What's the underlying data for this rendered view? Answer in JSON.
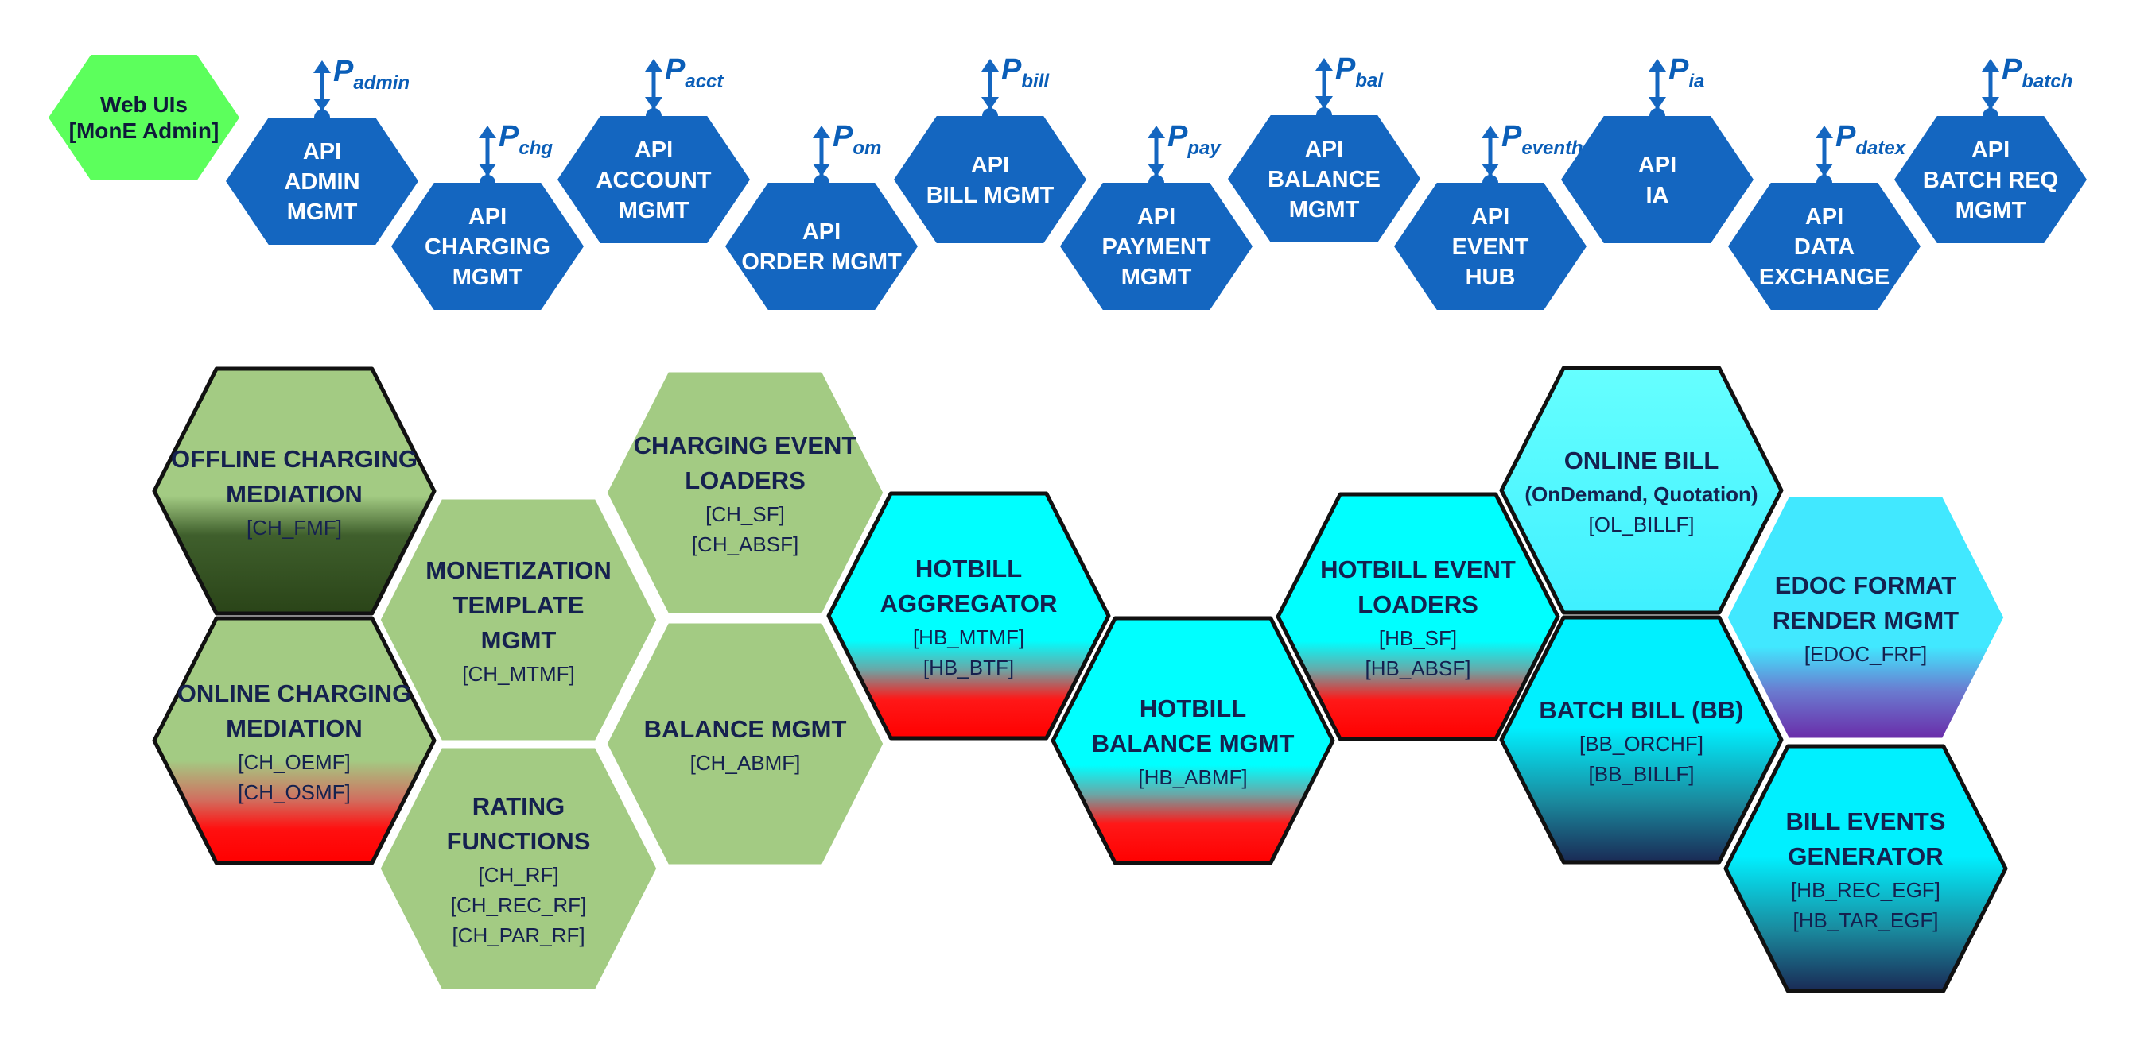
{
  "web_ui": {
    "lines": [
      "Web UIs",
      "[MonE Admin]"
    ],
    "color": "#5cff5c"
  },
  "api_color": "#1466c0",
  "apis": [
    {
      "id": "admin",
      "lines": [
        "API",
        "ADMIN",
        "MGMT"
      ],
      "port_main": "P",
      "port_sub": "admin"
    },
    {
      "id": "charging",
      "lines": [
        "API",
        "CHARGING",
        "MGMT"
      ],
      "port_main": "P",
      "port_sub": "chg"
    },
    {
      "id": "account",
      "lines": [
        "API",
        "ACCOUNT",
        "MGMT"
      ],
      "port_main": "P",
      "port_sub": "acct"
    },
    {
      "id": "order",
      "lines": [
        "API",
        "ORDER MGMT"
      ],
      "port_main": "P",
      "port_sub": "om"
    },
    {
      "id": "bill",
      "lines": [
        "API",
        "BILL MGMT"
      ],
      "port_main": "P",
      "port_sub": "bill"
    },
    {
      "id": "payment",
      "lines": [
        "API",
        "PAYMENT",
        "MGMT"
      ],
      "port_main": "P",
      "port_sub": "pay"
    },
    {
      "id": "balance",
      "lines": [
        "API",
        "BALANCE",
        "MGMT"
      ],
      "port_main": "P",
      "port_sub": "bal"
    },
    {
      "id": "eventhub",
      "lines": [
        "API",
        "EVENT",
        "HUB"
      ],
      "port_main": "P",
      "port_sub": "eventhub"
    },
    {
      "id": "ia",
      "lines": [
        "API",
        "IA"
      ],
      "port_main": "P",
      "port_sub": "ia"
    },
    {
      "id": "datex",
      "lines": [
        "API",
        "DATA",
        "EXCHANGE"
      ],
      "port_main": "P",
      "port_sub": "datex"
    },
    {
      "id": "batch",
      "lines": [
        "API",
        "BATCH REQ",
        "MGMT"
      ],
      "port_main": "P",
      "port_sub": "batch"
    }
  ],
  "services": [
    {
      "id": "offline-charging-mediation",
      "title": [
        "OFFLINE CHARGING",
        "MEDIATION"
      ],
      "codes": [
        "[CH_FMF]"
      ],
      "fill": "dark-green"
    },
    {
      "id": "online-charging-mediation",
      "title": [
        "ONLINE CHARGING",
        "MEDIATION"
      ],
      "codes": [
        "[CH_OEMF]",
        "[CH_OSMF]"
      ],
      "fill": "green-red"
    },
    {
      "id": "monetization-template-mgmt",
      "title": [
        "MONETIZATION",
        "TEMPLATE",
        "MGMT"
      ],
      "codes": [
        "[CH_MTMF]"
      ],
      "fill": "green"
    },
    {
      "id": "rating-functions",
      "title": [
        "RATING",
        "FUNCTIONS"
      ],
      "codes": [
        "[CH_RF]",
        "[CH_REC_RF]",
        "[CH_PAR_RF]"
      ],
      "fill": "green"
    },
    {
      "id": "charging-event-loaders",
      "title": [
        "CHARGING EVENT",
        "LOADERS"
      ],
      "codes": [
        "[CH_SF]",
        "[CH_ABSF]"
      ],
      "fill": "green"
    },
    {
      "id": "balance-mgmt",
      "title": [
        "BALANCE MGMT"
      ],
      "codes": [
        "[CH_ABMF]"
      ],
      "fill": "green"
    },
    {
      "id": "hotbill-aggregator",
      "title": [
        "HOTBILL",
        "AGGREGATOR"
      ],
      "codes": [
        "[HB_MTMF]",
        "[HB_BTF]"
      ],
      "fill": "cyan-red"
    },
    {
      "id": "hotbill-balance-mgmt",
      "title": [
        "HOTBILL",
        "BALANCE MGMT"
      ],
      "codes": [
        "[HB_ABMF]"
      ],
      "fill": "cyan-red"
    },
    {
      "id": "hotbill-event-loaders",
      "title": [
        "HOTBILL EVENT",
        "LOADERS"
      ],
      "codes": [
        "[HB_SF]",
        "[HB_ABSF]"
      ],
      "fill": "cyan-red"
    },
    {
      "id": "online-bill",
      "title": [
        "ONLINE BILL"
      ],
      "subtitle": "(OnDemand, Quotation)",
      "codes": [
        "[OL_BILLF]"
      ],
      "fill": "light-cyan"
    },
    {
      "id": "batch-bill",
      "title": [
        "BATCH BILL (BB)"
      ],
      "codes": [
        "[BB_ORCHF]",
        "[BB_BILLF]"
      ],
      "fill": "cyan-navy"
    },
    {
      "id": "edoc-format-render-mgmt",
      "title": [
        "EDOC FORMAT",
        "RENDER MGMT"
      ],
      "codes": [
        "[EDOC_FRF]"
      ],
      "fill": "cyan-purple"
    },
    {
      "id": "bill-events-generator",
      "title": [
        "BILL EVENTS",
        "GENERATOR"
      ],
      "codes": [
        "[HB_REC_EGF]",
        "[HB_TAR_EGF]"
      ],
      "fill": "cyan-navy"
    }
  ]
}
